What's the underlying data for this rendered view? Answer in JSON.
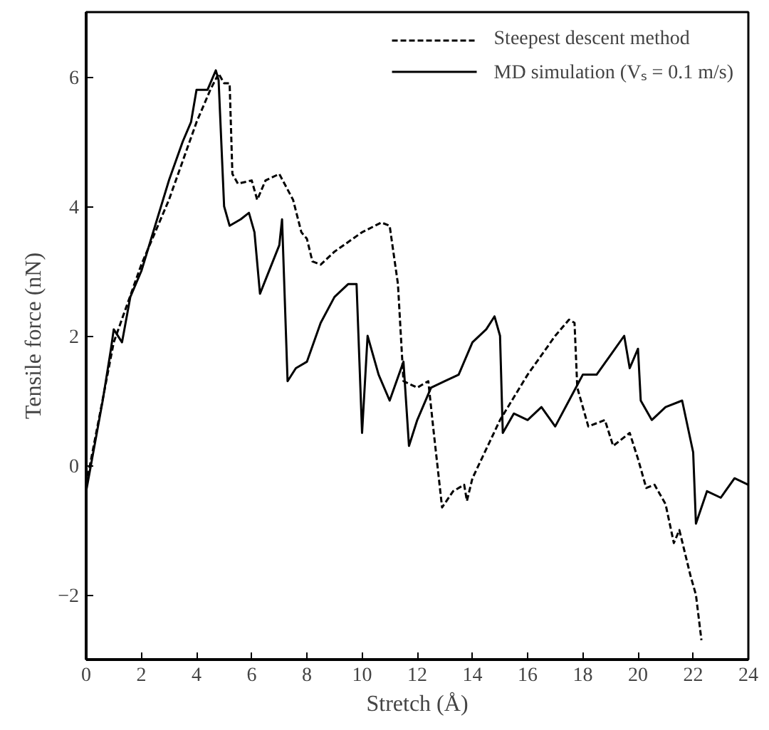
{
  "chart_data": {
    "type": "line",
    "xlabel": "Stretch (Å)",
    "ylabel": "Tensile force (nN)",
    "xlim": [
      0,
      24
    ],
    "ylim": [
      -3,
      7
    ],
    "xticks": [
      0,
      2,
      4,
      6,
      8,
      10,
      12,
      14,
      16,
      18,
      20,
      22,
      24
    ],
    "yticks": [
      -2,
      0,
      2,
      4,
      6
    ],
    "grid": false,
    "legend": "top right",
    "series": [
      {
        "name": "Steepest descent method",
        "color": "#000000",
        "line_style": "dashed",
        "x": [
          0,
          0.5,
          1.0,
          1.5,
          2,
          3,
          4,
          4.5,
          4.8,
          5.0,
          5.2,
          5.3,
          5.5,
          6.0,
          6.2,
          6.5,
          7.0,
          7.5,
          7.8,
          8.0,
          8.2,
          8.5,
          9.0,
          10,
          10.7,
          11.0,
          11.3,
          11.5,
          12.0,
          12.4,
          12.6,
          12.9,
          13.3,
          13.7,
          13.8,
          14.0,
          15,
          16,
          17,
          17.5,
          17.7,
          17.8,
          18.2,
          18.8,
          19.1,
          19.7,
          20.0,
          20.3,
          20.6,
          21.0,
          21.3,
          21.5,
          21.9,
          22.1,
          22.3
        ],
        "values": [
          -0.3,
          0.8,
          1.9,
          2.5,
          3.1,
          4.1,
          5.3,
          5.8,
          6.05,
          5.9,
          5.9,
          4.5,
          4.35,
          4.4,
          4.1,
          4.4,
          4.5,
          4.1,
          3.6,
          3.5,
          3.15,
          3.1,
          3.3,
          3.6,
          3.75,
          3.7,
          2.8,
          1.3,
          1.2,
          1.3,
          0.5,
          -0.65,
          -0.4,
          -0.3,
          -0.55,
          -0.2,
          0.7,
          1.4,
          2.0,
          2.25,
          2.2,
          1.2,
          0.6,
          0.7,
          0.3,
          0.5,
          0.1,
          -0.35,
          -0.3,
          -0.6,
          -1.2,
          -1.0,
          -1.7,
          -2.0,
          -2.7
        ]
      },
      {
        "name": "MD simulation (Vₛ = 0.1 m/s)",
        "color": "#000000",
        "line_style": "solid",
        "x": [
          0,
          0.3,
          0.6,
          0.9,
          1.0,
          1.3,
          1.6,
          2.0,
          2.5,
          3.0,
          3.5,
          3.8,
          4.0,
          4.4,
          4.7,
          4.8,
          5.0,
          5.2,
          5.6,
          5.9,
          6.1,
          6.3,
          7.0,
          7.1,
          7.3,
          7.6,
          8.0,
          8.5,
          9.0,
          9.5,
          9.8,
          10.0,
          10.2,
          10.6,
          11.0,
          11.5,
          11.7,
          12.0,
          12.5,
          13.0,
          13.5,
          14.0,
          14.5,
          14.8,
          15.0,
          15.1,
          15.5,
          16.0,
          16.5,
          17.0,
          17.5,
          18.0,
          18.5,
          19.0,
          19.5,
          19.7,
          20.0,
          20.1,
          20.5,
          21.0,
          21.6,
          22.0,
          22.1,
          22.5,
          23.0,
          23.5,
          24.0
        ],
        "values": [
          -0.4,
          0.3,
          1.0,
          1.8,
          2.1,
          1.9,
          2.6,
          3.0,
          3.7,
          4.4,
          5.0,
          5.3,
          5.8,
          5.8,
          6.1,
          5.95,
          4.0,
          3.7,
          3.8,
          3.9,
          3.6,
          2.65,
          3.4,
          3.8,
          1.3,
          1.5,
          1.6,
          2.2,
          2.6,
          2.8,
          2.8,
          0.5,
          2.0,
          1.4,
          1.0,
          1.6,
          0.3,
          0.7,
          1.2,
          1.3,
          1.4,
          1.9,
          2.1,
          2.3,
          2.0,
          0.5,
          0.8,
          0.7,
          0.9,
          0.6,
          1.0,
          1.4,
          1.4,
          1.7,
          2.0,
          1.5,
          1.8,
          1.0,
          0.7,
          0.9,
          1.0,
          0.2,
          -0.9,
          -0.4,
          -0.5,
          -0.2,
          -0.3
        ]
      }
    ]
  }
}
